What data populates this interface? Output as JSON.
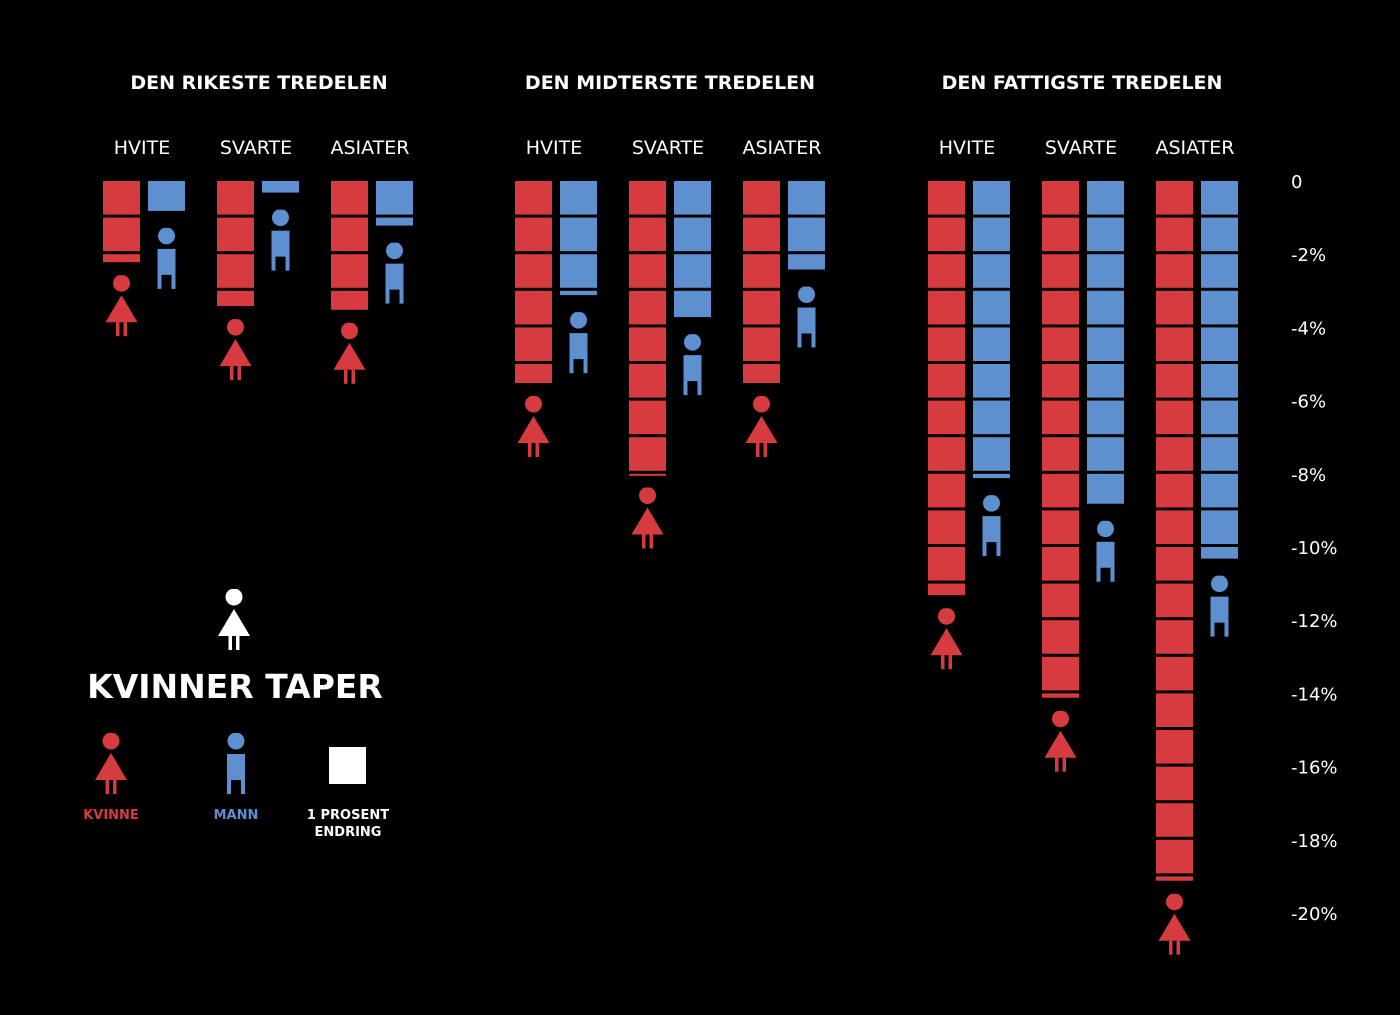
{
  "colors": {
    "woman": "#d63c3f",
    "man": "#5e8fcf",
    "background": "#000000",
    "text": "#ffffff"
  },
  "chart_data": {
    "type": "bar",
    "title": "KVINNER TAPER",
    "unit_note": "1 PROSENT ENDRING",
    "groups": [
      "DEN RIKESTE TREDELEN",
      "DEN MIDTERSTE TREDELEN",
      "DEN FATTIGSTE TREDELEN"
    ],
    "categories": [
      "HVITE",
      "SVARTE",
      "ASIATER"
    ],
    "series": [
      {
        "name": "KVINNE",
        "values": [
          [
            -2.3,
            -3.5,
            -3.6
          ],
          [
            -5.6,
            -8.1,
            -5.6
          ],
          [
            -11.4,
            -14.2,
            -19.2
          ]
        ]
      },
      {
        "name": "MANN",
        "values": [
          [
            -0.9,
            -0.4,
            -1.3
          ],
          [
            -3.2,
            -3.8,
            -2.5
          ],
          [
            -8.2,
            -8.9,
            -10.4
          ]
        ]
      }
    ],
    "yticks": [
      "0",
      "-2%",
      "-4%",
      "-6%",
      "-8%",
      "-10%",
      "-12%",
      "-14%",
      "-16%",
      "-18%",
      "-20%"
    ],
    "ylim": [
      -20,
      0
    ]
  },
  "legend": {
    "title": "KVINNER TAPER",
    "woman": "KVINNE",
    "man": "MANN",
    "unit_line1": "1 PROSENT",
    "unit_line2": "ENDRING"
  }
}
